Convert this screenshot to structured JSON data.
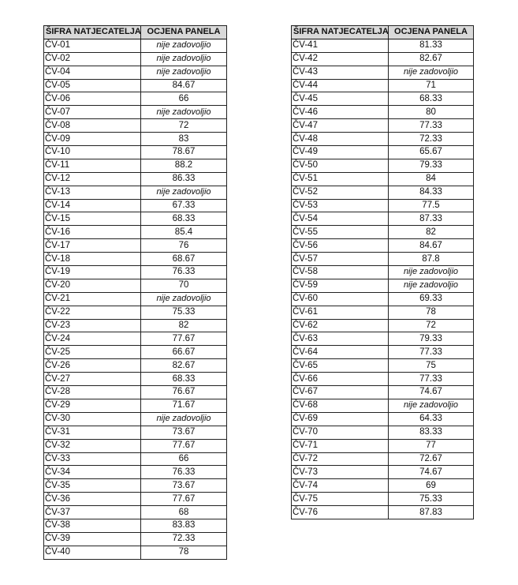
{
  "headers": {
    "code": "ŠIFRA NATJECATELJA",
    "score": "OCJENA PANELA"
  },
  "left_rows": [
    [
      "ČV-01",
      "nije zadovoljio"
    ],
    [
      "ČV-02",
      "nije zadovoljio"
    ],
    [
      "ČV-04",
      "nije zadovoljio"
    ],
    [
      "ČV-05",
      "84.67"
    ],
    [
      "ČV-06",
      "66"
    ],
    [
      "ČV-07",
      "nije zadovoljio"
    ],
    [
      "ČV-08",
      "72"
    ],
    [
      "ČV-09",
      "83"
    ],
    [
      "ČV-10",
      "78.67"
    ],
    [
      "ČV-11",
      "88.2"
    ],
    [
      "ČV-12",
      "86.33"
    ],
    [
      "ČV-13",
      "nije zadovoljio"
    ],
    [
      "ČV-14",
      "67.33"
    ],
    [
      "ČV-15",
      "68.33"
    ],
    [
      "ČV-16",
      "85.4"
    ],
    [
      "ČV-17",
      "76"
    ],
    [
      "ČV-18",
      "68.67"
    ],
    [
      "ČV-19",
      "76.33"
    ],
    [
      "ČV-20",
      "70"
    ],
    [
      "ČV-21",
      "nije zadovoljio"
    ],
    [
      "ČV-22",
      "75.33"
    ],
    [
      "ČV-23",
      "82"
    ],
    [
      "ČV-24",
      "77.67"
    ],
    [
      "ČV-25",
      "66.67"
    ],
    [
      "ČV-26",
      "82.67"
    ],
    [
      "ČV-27",
      "68.33"
    ],
    [
      "ČV-28",
      "76.67"
    ],
    [
      "ČV-29",
      "71.67"
    ],
    [
      "ČV-30",
      "nije zadovoljio"
    ],
    [
      "ČV-31",
      "73.67"
    ],
    [
      "ČV-32",
      "77.67"
    ],
    [
      "ČV-33",
      "66"
    ],
    [
      "ČV-34",
      "76.33"
    ],
    [
      "ČV-35",
      "73.67"
    ],
    [
      "ČV-36",
      "77.67"
    ],
    [
      "ČV-37",
      "68"
    ],
    [
      "ČV-38",
      "83.83"
    ],
    [
      "ČV-39",
      "72.33"
    ],
    [
      "ČV-40",
      "78"
    ]
  ],
  "right_rows": [
    [
      "ČV-41",
      "81.33"
    ],
    [
      "ČV-42",
      "82.67"
    ],
    [
      "ČV-43",
      "nije zadovoljio"
    ],
    [
      "ČV-44",
      "71"
    ],
    [
      "ČV-45",
      "68.33"
    ],
    [
      "ČV-46",
      "80"
    ],
    [
      "ČV-47",
      "77.33"
    ],
    [
      "ČV-48",
      "72.33"
    ],
    [
      "ČV-49",
      "65.67"
    ],
    [
      "ČV-50",
      "79.33"
    ],
    [
      "ČV-51",
      "84"
    ],
    [
      "ČV-52",
      "84.33"
    ],
    [
      "ČV-53",
      "77.5"
    ],
    [
      "ČV-54",
      "87.33"
    ],
    [
      "ČV-55",
      "82"
    ],
    [
      "ČV-56",
      "84.67"
    ],
    [
      "ČV-57",
      "87.8"
    ],
    [
      "ČV-58",
      "nije zadovoljio"
    ],
    [
      "ČV-59",
      "nije zadovoljio"
    ],
    [
      "ČV-60",
      "69.33"
    ],
    [
      "ČV-61",
      "78"
    ],
    [
      "ČV-62",
      "72"
    ],
    [
      "ČV-63",
      "79.33"
    ],
    [
      "ČV-64",
      "77.33"
    ],
    [
      "ČV-65",
      "75"
    ],
    [
      "ČV-66",
      "77.33"
    ],
    [
      "ČV-67",
      "74.67"
    ],
    [
      "ČV-68",
      "nije zadovoljio"
    ],
    [
      "ČV-69",
      "64.33"
    ],
    [
      "ČV-70",
      "83.33"
    ],
    [
      "ČV-71",
      "77"
    ],
    [
      "ČV-72",
      "72.67"
    ],
    [
      "ČV-73",
      "74.67"
    ],
    [
      "ČV-74",
      "69"
    ],
    [
      "ČV-75",
      "75.33"
    ],
    [
      "ČV-76",
      "87.83"
    ]
  ]
}
